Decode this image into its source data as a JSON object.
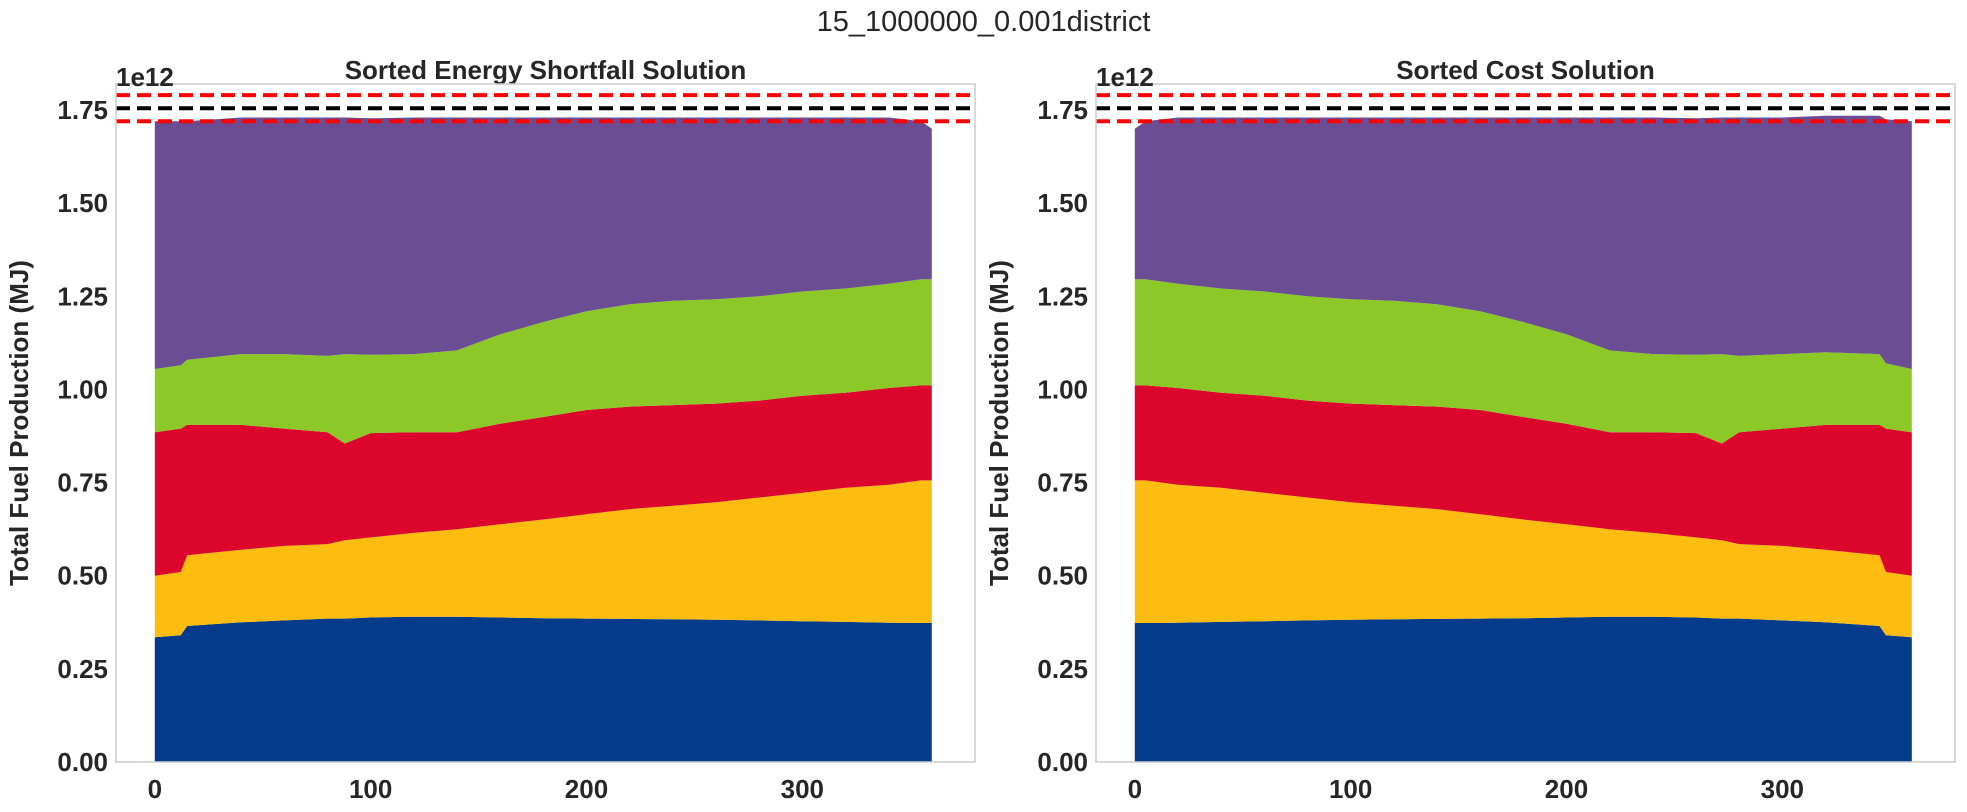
{
  "figure": {
    "suptitle": "15_1000000_0.001district"
  },
  "chart_data": [
    {
      "type": "area",
      "title": "Sorted Energy Shortfall Solution",
      "ylabel": "Total Fuel Production (MJ)",
      "xlabel": "",
      "y_offset_text": "1e12",
      "xlim": [
        -18,
        380
      ],
      "ylim": [
        0,
        1.82
      ],
      "xticks": [
        "0",
        "100",
        "200",
        "300"
      ],
      "yticks": [
        "0.00",
        "0.25",
        "0.50",
        "0.75",
        "1.00",
        "1.25",
        "1.50",
        "1.75"
      ],
      "grid": false,
      "colors": [
        "#043c8b",
        "#fdbd10",
        "#dc062d",
        "#8cc828",
        "#6a4d93"
      ],
      "x": [
        0,
        12,
        15,
        40,
        60,
        80,
        88,
        100,
        120,
        140,
        160,
        180,
        200,
        220,
        240,
        260,
        280,
        300,
        320,
        340,
        355,
        360
      ],
      "series": [
        {
          "values": [
            0.335,
            0.34,
            0.365,
            0.375,
            0.38,
            0.385,
            0.385,
            0.388,
            0.39,
            0.39,
            0.388,
            0.386,
            0.385,
            0.384,
            0.383,
            0.382,
            0.38,
            0.378,
            0.376,
            0.374,
            0.373,
            0.373
          ]
        },
        {
          "values": [
            0.165,
            0.17,
            0.19,
            0.195,
            0.2,
            0.2,
            0.21,
            0.215,
            0.225,
            0.235,
            0.25,
            0.265,
            0.28,
            0.295,
            0.305,
            0.315,
            0.33,
            0.345,
            0.36,
            0.37,
            0.383,
            0.383
          ]
        },
        {
          "values": [
            0.385,
            0.385,
            0.35,
            0.335,
            0.315,
            0.3,
            0.26,
            0.28,
            0.27,
            0.26,
            0.27,
            0.275,
            0.28,
            0.275,
            0.27,
            0.265,
            0.26,
            0.26,
            0.255,
            0.26,
            0.255,
            0.255
          ]
        },
        {
          "values": [
            0.17,
            0.17,
            0.175,
            0.19,
            0.2,
            0.205,
            0.24,
            0.21,
            0.21,
            0.22,
            0.24,
            0.255,
            0.265,
            0.275,
            0.28,
            0.28,
            0.28,
            0.28,
            0.28,
            0.28,
            0.285,
            0.285
          ]
        },
        {
          "values": [
            0.665,
            0.655,
            0.64,
            0.635,
            0.635,
            0.64,
            0.635,
            0.635,
            0.635,
            0.625,
            0.582,
            0.549,
            0.52,
            0.501,
            0.492,
            0.488,
            0.48,
            0.467,
            0.459,
            0.446,
            0.424,
            0.404
          ]
        }
      ],
      "reference_lines": [
        {
          "y": 1.755,
          "color": "#000000",
          "style": "dashed"
        },
        {
          "y": 1.79,
          "color": "#ff0000",
          "style": "dashed"
        },
        {
          "y": 1.72,
          "color": "#ff0000",
          "style": "dashed"
        }
      ]
    },
    {
      "type": "area",
      "title": "Sorted Cost Solution",
      "ylabel": "Total Fuel Production (MJ)",
      "xlabel": "",
      "y_offset_text": "1e12",
      "xlim": [
        -18,
        380
      ],
      "ylim": [
        0,
        1.82
      ],
      "xticks": [
        "0",
        "100",
        "200",
        "300"
      ],
      "yticks": [
        "0.00",
        "0.25",
        "0.50",
        "0.75",
        "1.00",
        "1.25",
        "1.50",
        "1.75"
      ],
      "grid": false,
      "colors": [
        "#043c8b",
        "#fdbd10",
        "#dc062d",
        "#8cc828",
        "#6a4d93"
      ],
      "x": [
        0,
        5,
        20,
        40,
        60,
        80,
        100,
        120,
        140,
        160,
        180,
        200,
        220,
        240,
        260,
        272,
        280,
        300,
        320,
        345,
        348,
        360
      ],
      "series": [
        {
          "values": [
            0.373,
            0.373,
            0.374,
            0.376,
            0.378,
            0.38,
            0.382,
            0.383,
            0.384,
            0.385,
            0.386,
            0.388,
            0.39,
            0.39,
            0.388,
            0.385,
            0.385,
            0.38,
            0.375,
            0.365,
            0.34,
            0.335
          ]
        },
        {
          "values": [
            0.383,
            0.383,
            0.37,
            0.36,
            0.345,
            0.33,
            0.315,
            0.305,
            0.295,
            0.28,
            0.265,
            0.25,
            0.235,
            0.225,
            0.215,
            0.21,
            0.2,
            0.2,
            0.195,
            0.19,
            0.17,
            0.165
          ]
        },
        {
          "values": [
            0.255,
            0.255,
            0.26,
            0.255,
            0.26,
            0.26,
            0.265,
            0.27,
            0.275,
            0.28,
            0.275,
            0.27,
            0.26,
            0.27,
            0.28,
            0.26,
            0.3,
            0.315,
            0.335,
            0.35,
            0.385,
            0.385
          ]
        },
        {
          "values": [
            0.285,
            0.285,
            0.28,
            0.28,
            0.28,
            0.28,
            0.28,
            0.28,
            0.275,
            0.265,
            0.255,
            0.24,
            0.22,
            0.21,
            0.21,
            0.24,
            0.205,
            0.2,
            0.195,
            0.19,
            0.175,
            0.17
          ]
        },
        {
          "values": [
            0.404,
            0.424,
            0.446,
            0.459,
            0.467,
            0.48,
            0.488,
            0.492,
            0.501,
            0.52,
            0.549,
            0.582,
            0.625,
            0.635,
            0.635,
            0.635,
            0.64,
            0.635,
            0.635,
            0.64,
            0.655,
            0.665
          ]
        }
      ],
      "reference_lines": [
        {
          "y": 1.755,
          "color": "#000000",
          "style": "dashed"
        },
        {
          "y": 1.79,
          "color": "#ff0000",
          "style": "dashed"
        },
        {
          "y": 1.72,
          "color": "#ff0000",
          "style": "dashed"
        }
      ]
    }
  ]
}
